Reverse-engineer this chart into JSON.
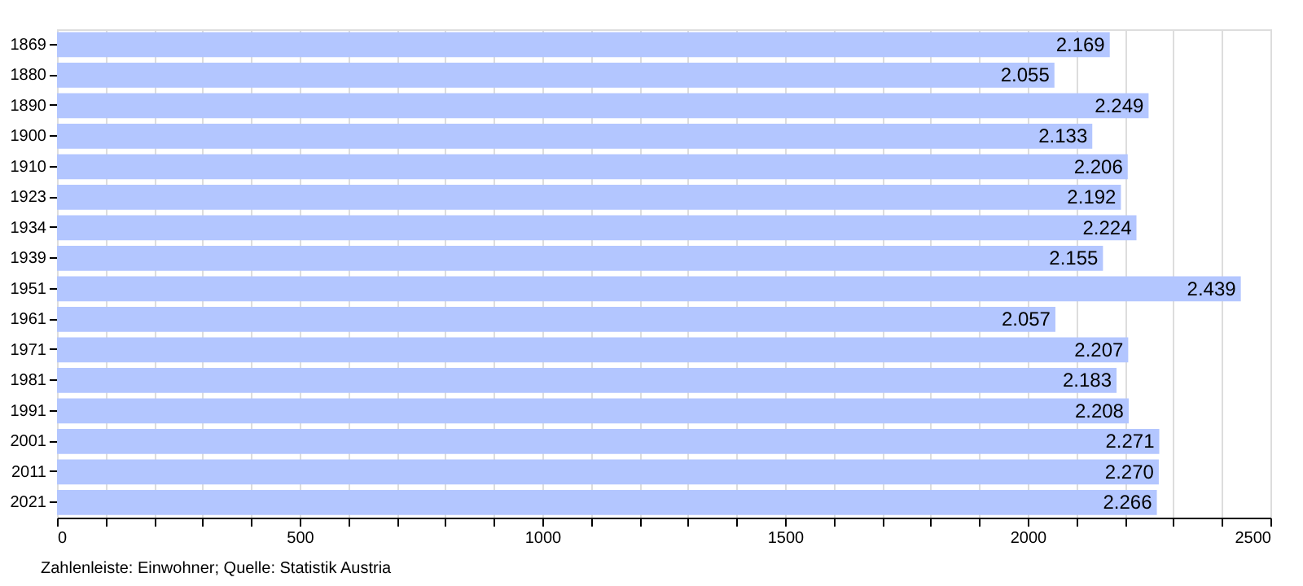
{
  "chart_data": {
    "type": "bar",
    "orientation": "horizontal",
    "categories": [
      "1869",
      "1880",
      "1890",
      "1900",
      "1910",
      "1923",
      "1934",
      "1939",
      "1951",
      "1961",
      "1971",
      "1981",
      "1991",
      "2001",
      "2011",
      "2021"
    ],
    "values": [
      2169,
      2055,
      2249,
      2133,
      2206,
      2192,
      2224,
      2155,
      2439,
      2057,
      2207,
      2183,
      2208,
      2271,
      2270,
      2266
    ],
    "value_labels": [
      "2.169",
      "2.055",
      "2.249",
      "2.133",
      "2.206",
      "2.192",
      "2.224",
      "2.155",
      "2.439",
      "2.057",
      "2.207",
      "2.183",
      "2.208",
      "2.271",
      "2.270",
      "2.266"
    ],
    "color": "#b3c6ff",
    "xlim": [
      0,
      2500
    ],
    "xticks": [
      0,
      {
        "value": 100,
        "label": null
      },
      {
        "value": 200,
        "label": null
      },
      {
        "value": 300,
        "label": null
      },
      {
        "value": 400,
        "label": null
      },
      500,
      {
        "value": 600,
        "label": null
      },
      {
        "value": 700,
        "label": null
      },
      {
        "value": 800,
        "label": null
      },
      {
        "value": 900,
        "label": null
      },
      1000,
      {
        "value": 1100,
        "label": null
      },
      {
        "value": 1200,
        "label": null
      },
      {
        "value": 1300,
        "label": null
      },
      {
        "value": 1400,
        "label": null
      },
      1500,
      {
        "value": 1600,
        "label": null
      },
      {
        "value": 1700,
        "label": null
      },
      {
        "value": 1800,
        "label": null
      },
      {
        "value": 1900,
        "label": null
      },
      2000,
      {
        "value": 2100,
        "label": null
      },
      {
        "value": 2200,
        "label": null
      },
      {
        "value": 2300,
        "label": null
      },
      {
        "value": 2400,
        "label": null
      },
      2500
    ],
    "grid": "x",
    "annotations": [
      "Zahlenleiste: Einwohner; Quelle: Statistik Austria"
    ]
  }
}
